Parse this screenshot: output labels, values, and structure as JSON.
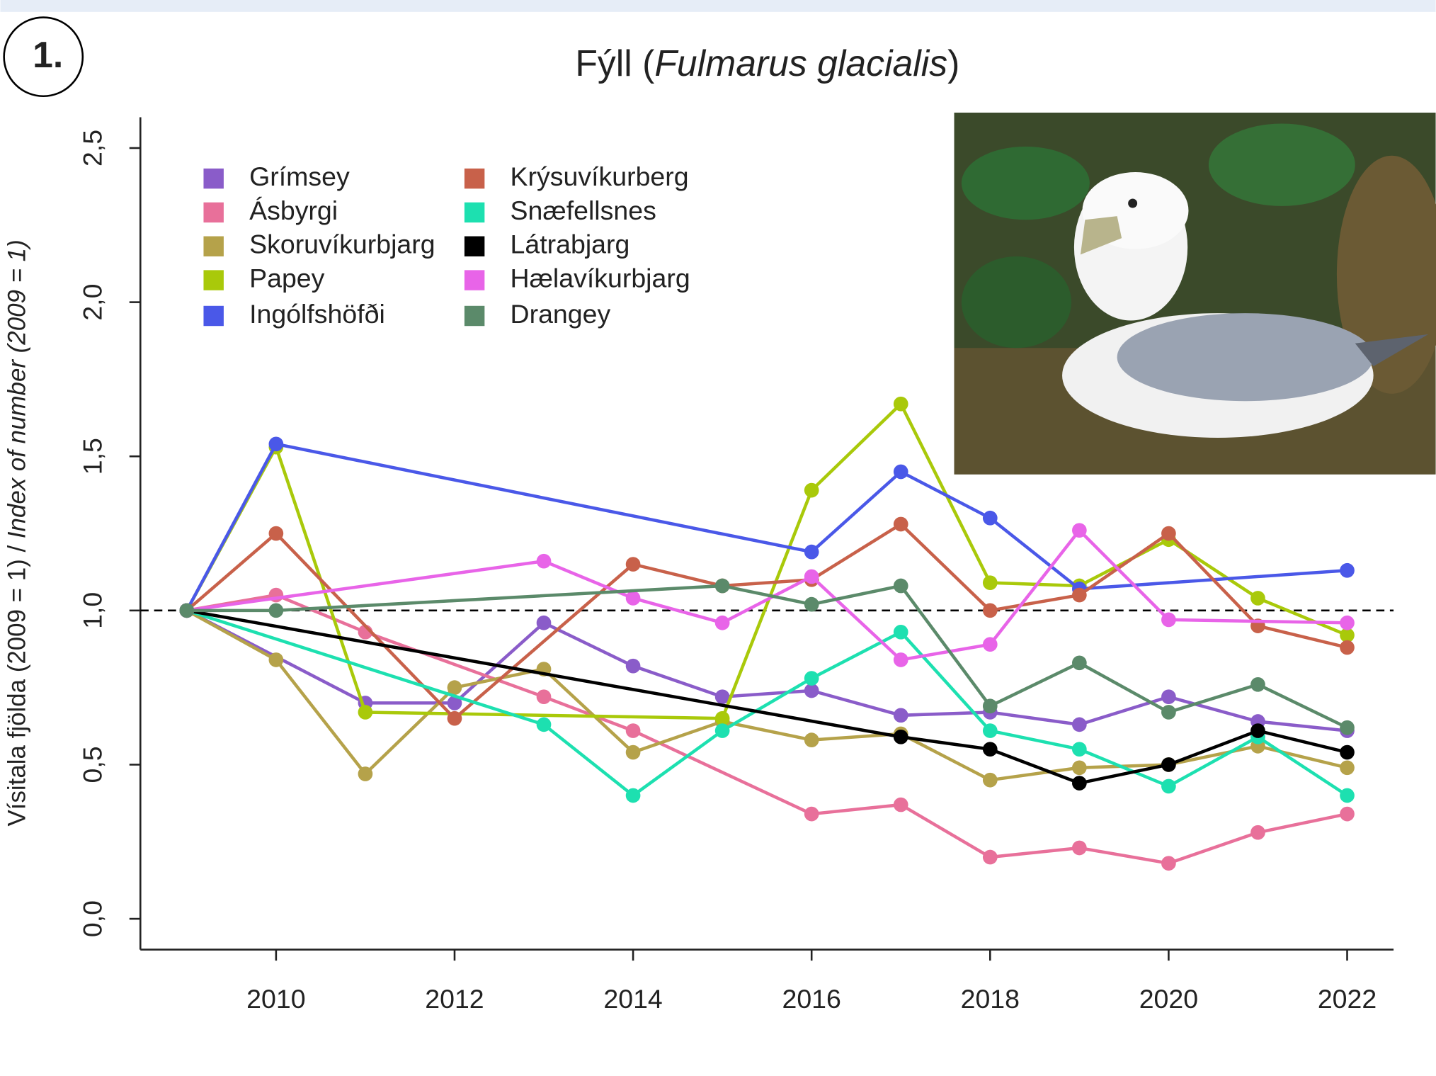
{
  "panel_label": "1.",
  "chart_data": {
    "type": "line",
    "title": [
      "Fýll  (",
      "Fulmarus glacialis",
      ")"
    ],
    "ylabel": [
      "Vísitala fjölda (2009 = 1)  / ",
      "Index of number (2009 = 1)"
    ],
    "xlim": [
      2008.48,
      2022.52
    ],
    "ylim": [
      -0.1,
      2.6
    ],
    "xticks": [
      2010,
      2012,
      2014,
      2016,
      2018,
      2020,
      2022
    ],
    "yticks": [
      {
        "value": 0,
        "label": "0,0"
      },
      {
        "value": 0.5,
        "label": "0,5"
      },
      {
        "value": 1,
        "label": "1,0"
      },
      {
        "value": 1.5,
        "label": "1,5"
      },
      {
        "value": 2,
        "label": "2,0"
      },
      {
        "value": 2.5,
        "label": "2,5"
      }
    ],
    "hline": 1,
    "series": [
      {
        "name": "Grímsey",
        "color": "#8a5cc9",
        "x": [
          2009,
          2011,
          2012,
          2013,
          2014,
          2015,
          2016,
          2017,
          2018,
          2019,
          2020,
          2021,
          2022
        ],
        "values": [
          1,
          0.7,
          0.7,
          0.96,
          0.82,
          0.72,
          0.74,
          0.66,
          0.67,
          0.63,
          0.72,
          0.64,
          0.61
        ]
      },
      {
        "name": "Ásbyrgi",
        "color": "#e8709a",
        "x": [
          2009,
          2010,
          2011,
          2013,
          2014,
          2016,
          2017,
          2018,
          2019,
          2020,
          2021,
          2022
        ],
        "values": [
          1,
          1.05,
          0.93,
          0.72,
          0.61,
          0.34,
          0.37,
          0.2,
          0.23,
          0.18,
          0.28,
          0.34
        ]
      },
      {
        "name": "Skoruvíkurbjarg",
        "color": "#b5a24a",
        "x": [
          2009,
          2010,
          2011,
          2012,
          2013,
          2014,
          2015,
          2016,
          2017,
          2018,
          2019,
          2020,
          2021,
          2022
        ],
        "values": [
          1,
          0.84,
          0.47,
          0.75,
          0.81,
          0.54,
          0.64,
          0.58,
          0.6,
          0.45,
          0.49,
          0.5,
          0.56,
          0.49
        ]
      },
      {
        "name": "Papey",
        "color": "#a9c90a",
        "x": [
          2009,
          2010,
          2011,
          2015,
          2016,
          2017,
          2018,
          2019,
          2020,
          2021,
          2022
        ],
        "values": [
          1,
          1.53,
          0.67,
          0.65,
          1.39,
          1.67,
          1.09,
          1.08,
          1.23,
          1.04,
          0.92
        ]
      },
      {
        "name": "Ingólfshöfði",
        "color": "#4a58e8",
        "x": [
          2009,
          2010,
          2016,
          2017,
          2018,
          2019,
          2022
        ],
        "values": [
          1,
          1.54,
          1.19,
          1.45,
          1.3,
          1.07,
          1.13
        ]
      },
      {
        "name": "Krýsuvíkurberg",
        "color": "#c8614a",
        "x": [
          2009,
          2010,
          2012,
          2014,
          2015,
          2016,
          2017,
          2018,
          2019,
          2020,
          2021,
          2022
        ],
        "values": [
          1,
          1.25,
          0.65,
          1.15,
          1.08,
          1.1,
          1.28,
          1.0,
          1.05,
          1.25,
          0.95,
          0.88
        ]
      },
      {
        "name": "Snæfellsnes",
        "color": "#1de0b0",
        "x": [
          2009,
          2013,
          2014,
          2015,
          2016,
          2017,
          2018,
          2019,
          2020,
          2021,
          2022
        ],
        "values": [
          1,
          0.63,
          0.4,
          0.61,
          0.78,
          0.93,
          0.61,
          0.55,
          0.43,
          0.59,
          0.4
        ]
      },
      {
        "name": "Látrabjarg",
        "color": "#000000",
        "x": [
          2009,
          2017,
          2018,
          2019,
          2020,
          2021,
          2022
        ],
        "values": [
          1,
          0.59,
          0.55,
          0.44,
          0.5,
          0.61,
          0.54
        ]
      },
      {
        "name": "Hælavíkurbjarg",
        "color": "#e864e8",
        "x": [
          2009,
          2013,
          2014,
          2015,
          2016,
          2017,
          2018,
          2019,
          2020,
          2022
        ],
        "values": [
          1,
          1.16,
          1.04,
          0.96,
          1.11,
          0.84,
          0.89,
          1.26,
          0.97,
          0.96
        ]
      },
      {
        "name": "Drangey",
        "color": "#5b8a6a",
        "x": [
          2009,
          2010,
          2015,
          2016,
          2017,
          2018,
          2019,
          2020,
          2021,
          2022
        ],
        "values": [
          1,
          1.0,
          1.08,
          1.02,
          1.08,
          0.69,
          0.83,
          0.67,
          0.76,
          0.62
        ]
      }
    ]
  }
}
